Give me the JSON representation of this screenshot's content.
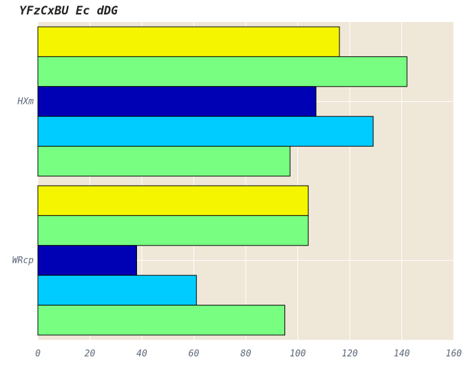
{
  "chart_data": {
    "type": "bar",
    "orientation": "horizontal",
    "title": "YFzCxBU Ec dDG",
    "xlabel": "",
    "ylabel": "",
    "categories": [
      "HXm",
      "WRcp"
    ],
    "xlim": [
      0,
      160
    ],
    "xticks": [
      0,
      20,
      40,
      60,
      80,
      100,
      120,
      140,
      160
    ],
    "grid": true,
    "legend": "none",
    "series": [
      {
        "color": "#f5f500",
        "values": [
          116,
          104
        ]
      },
      {
        "color": "#78ff82",
        "values": [
          142,
          104
        ]
      },
      {
        "color": "#0000b4",
        "values": [
          107,
          38
        ]
      },
      {
        "color": "#00ccff",
        "values": [
          129,
          61
        ]
      },
      {
        "color": "#78ff82",
        "values": [
          97,
          95
        ]
      }
    ],
    "colors": {
      "plot_background": "#efe7d8",
      "grid": "#ffffff"
    }
  }
}
